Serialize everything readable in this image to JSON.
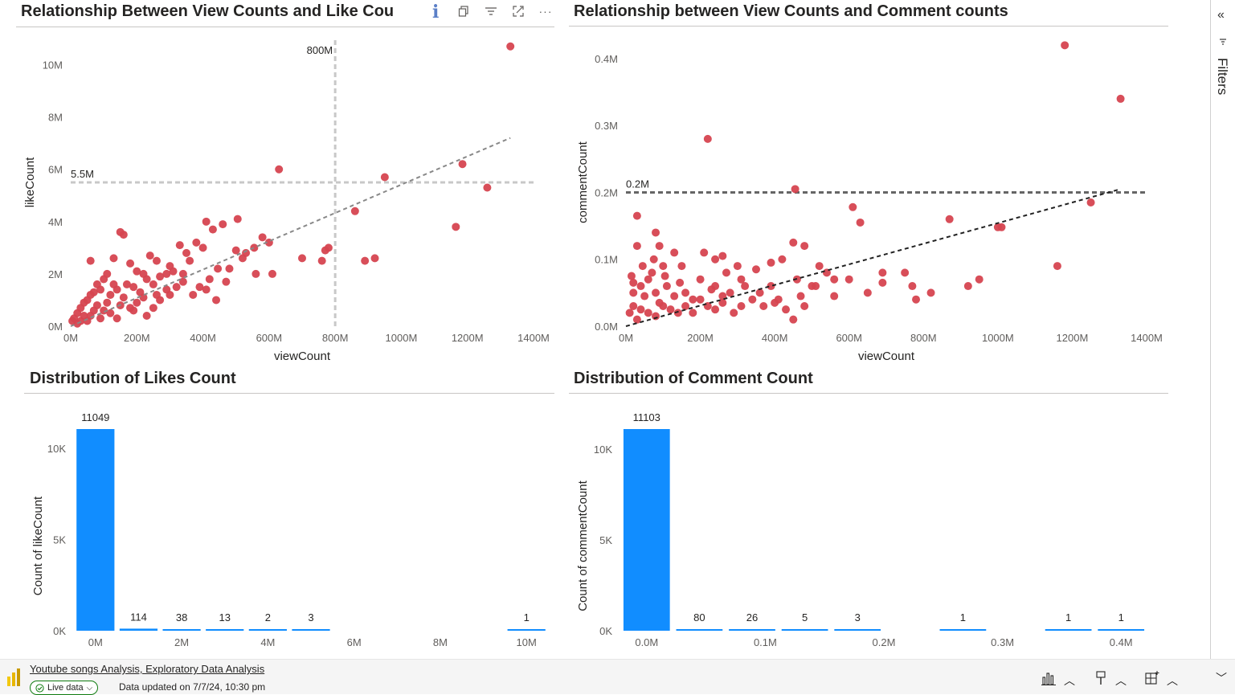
{
  "visuals": {
    "like_scatter": {
      "title": "Relationship Between View Counts and Like Cou",
      "ref_x_label": "800M",
      "ref_y_label": "5.5M"
    },
    "comment_scatter": {
      "title": "Relationship between View Counts and Comment counts",
      "ref_y_label": "0.2M"
    },
    "likes_hist": {
      "title": "Distribution of Likes Count"
    },
    "comment_hist": {
      "title": "Distribution of Comment Count"
    }
  },
  "header_icons": [
    "info-icon",
    "copy-icon",
    "filter-icon",
    "focus-mode-icon",
    "more-options-icon"
  ],
  "right_pane": {
    "label": "Filters"
  },
  "footer": {
    "report_title": "Youtube songs Analysis, Exploratory Data Analysis",
    "live_label": "Live data",
    "updated": "Data updated on 7/7/24, 10:30 pm"
  },
  "colors": {
    "scatter": "#d64550",
    "bar": "#118dff",
    "trend": "#555555"
  },
  "chart_data": [
    {
      "type": "scatter",
      "title": "Relationship Between View Counts and Like Cou",
      "xlabel": "viewCount",
      "ylabel": "likeCount",
      "xticks": [
        "0M",
        "200M",
        "400M",
        "600M",
        "800M",
        "1000M",
        "1200M",
        "1400M"
      ],
      "yticks": [
        "0M",
        "2M",
        "4M",
        "6M",
        "8M",
        "10M"
      ],
      "xlim": [
        0,
        1400
      ],
      "ylim": [
        0,
        11
      ],
      "x_unit": "M",
      "y_unit": "M",
      "reference_lines": {
        "x": 800,
        "y": 5.5
      },
      "trend": {
        "x": [
          0,
          1330
        ],
        "y": [
          0,
          7.2
        ]
      },
      "points": [
        [
          1330,
          10.7
        ],
        [
          950,
          5.7
        ],
        [
          1185,
          6.2
        ],
        [
          1260,
          5.3
        ],
        [
          630,
          6.0
        ],
        [
          860,
          4.4
        ],
        [
          1165,
          3.8
        ],
        [
          890,
          2.5
        ],
        [
          920,
          2.6
        ],
        [
          580,
          3.4
        ],
        [
          600,
          3.2
        ],
        [
          555,
          3.0
        ],
        [
          520,
          2.6
        ],
        [
          480,
          2.2
        ],
        [
          445,
          2.2
        ],
        [
          500,
          2.9
        ],
        [
          505,
          4.1
        ],
        [
          460,
          3.9
        ],
        [
          410,
          4.0
        ],
        [
          430,
          3.7
        ],
        [
          380,
          3.2
        ],
        [
          400,
          3.0
        ],
        [
          350,
          2.8
        ],
        [
          330,
          3.1
        ],
        [
          300,
          2.3
        ],
        [
          290,
          2.0
        ],
        [
          260,
          2.5
        ],
        [
          240,
          2.7
        ],
        [
          220,
          2.0
        ],
        [
          200,
          2.1
        ],
        [
          180,
          2.4
        ],
        [
          160,
          3.5
        ],
        [
          150,
          3.6
        ],
        [
          130,
          2.6
        ],
        [
          110,
          2.0
        ],
        [
          100,
          1.8
        ],
        [
          90,
          1.4
        ],
        [
          80,
          1.6
        ],
        [
          70,
          1.3
        ],
        [
          60,
          1.2
        ],
        [
          50,
          1.0
        ],
        [
          40,
          0.9
        ],
        [
          30,
          0.7
        ],
        [
          20,
          0.5
        ],
        [
          10,
          0.3
        ],
        [
          5,
          0.2
        ],
        [
          120,
          1.2
        ],
        [
          140,
          1.4
        ],
        [
          170,
          1.6
        ],
        [
          190,
          1.5
        ],
        [
          210,
          1.3
        ],
        [
          230,
          1.8
        ],
        [
          250,
          1.6
        ],
        [
          270,
          1.9
        ],
        [
          310,
          2.1
        ],
        [
          340,
          1.7
        ],
        [
          360,
          2.5
        ],
        [
          390,
          1.5
        ],
        [
          420,
          1.8
        ],
        [
          470,
          1.7
        ],
        [
          530,
          2.8
        ],
        [
          560,
          2.0
        ],
        [
          610,
          2.0
        ],
        [
          700,
          2.6
        ],
        [
          760,
          2.5
        ],
        [
          770,
          2.9
        ],
        [
          780,
          3.0
        ],
        [
          340,
          2.0
        ],
        [
          60,
          2.5
        ],
        [
          80,
          0.8
        ],
        [
          100,
          0.6
        ],
        [
          150,
          0.8
        ],
        [
          200,
          0.9
        ],
        [
          250,
          0.7
        ],
        [
          300,
          1.2
        ],
        [
          320,
          1.5
        ],
        [
          370,
          1.2
        ],
        [
          410,
          1.4
        ],
        [
          440,
          1.0
        ],
        [
          30,
          0.2
        ],
        [
          60,
          0.4
        ],
        [
          90,
          0.3
        ],
        [
          120,
          0.5
        ],
        [
          180,
          0.7
        ],
        [
          220,
          1.1
        ],
        [
          270,
          1.0
        ],
        [
          130,
          1.6
        ],
        [
          160,
          1.1
        ],
        [
          110,
          0.9
        ],
        [
          70,
          0.6
        ],
        [
          40,
          0.4
        ],
        [
          20,
          0.1
        ],
        [
          50,
          0.2
        ],
        [
          140,
          0.3
        ],
        [
          190,
          0.6
        ],
        [
          230,
          0.4
        ],
        [
          260,
          1.2
        ],
        [
          290,
          1.4
        ]
      ]
    },
    {
      "type": "scatter",
      "title": "Relationship between View Counts and Comment counts",
      "xlabel": "viewCount",
      "ylabel": "commentCount",
      "xticks": [
        "0M",
        "200M",
        "400M",
        "600M",
        "800M",
        "1000M",
        "1200M",
        "1400M"
      ],
      "yticks": [
        "0.0M",
        "0.1M",
        "0.2M",
        "0.3M",
        "0.4M"
      ],
      "xlim": [
        0,
        1400
      ],
      "ylim": [
        0,
        0.43
      ],
      "x_unit": "M",
      "y_unit": "M",
      "reference_lines": {
        "y": 0.2
      },
      "trend": {
        "x": [
          0,
          1330
        ],
        "y": [
          0,
          0.205
        ]
      },
      "points": [
        [
          1180,
          0.42
        ],
        [
          1330,
          0.34
        ],
        [
          220,
          0.28
        ],
        [
          455,
          0.205
        ],
        [
          1250,
          0.185
        ],
        [
          1010,
          0.148
        ],
        [
          1160,
          0.09
        ],
        [
          870,
          0.16
        ],
        [
          610,
          0.178
        ],
        [
          630,
          0.155
        ],
        [
          30,
          0.165
        ],
        [
          80,
          0.14
        ],
        [
          30,
          0.12
        ],
        [
          90,
          0.12
        ],
        [
          210,
          0.11
        ],
        [
          240,
          0.1
        ],
        [
          260,
          0.105
        ],
        [
          480,
          0.12
        ],
        [
          450,
          0.125
        ],
        [
          520,
          0.09
        ],
        [
          390,
          0.095
        ],
        [
          420,
          0.1
        ],
        [
          350,
          0.085
        ],
        [
          300,
          0.09
        ],
        [
          270,
          0.08
        ],
        [
          240,
          0.06
        ],
        [
          200,
          0.07
        ],
        [
          150,
          0.09
        ],
        [
          130,
          0.11
        ],
        [
          100,
          0.09
        ],
        [
          70,
          0.08
        ],
        [
          40,
          0.06
        ],
        [
          20,
          0.05
        ],
        [
          60,
          0.07
        ],
        [
          80,
          0.05
        ],
        [
          110,
          0.06
        ],
        [
          160,
          0.05
        ],
        [
          180,
          0.04
        ],
        [
          230,
          0.055
        ],
        [
          280,
          0.05
        ],
        [
          320,
          0.06
        ],
        [
          360,
          0.05
        ],
        [
          410,
          0.04
        ],
        [
          460,
          0.07
        ],
        [
          510,
          0.06
        ],
        [
          560,
          0.07
        ],
        [
          600,
          0.07
        ],
        [
          650,
          0.05
        ],
        [
          690,
          0.08
        ],
        [
          750,
          0.08
        ],
        [
          770,
          0.06
        ],
        [
          690,
          0.065
        ],
        [
          950,
          0.07
        ],
        [
          920,
          0.06
        ],
        [
          820,
          0.05
        ],
        [
          780,
          0.04
        ],
        [
          1000,
          0.148
        ],
        [
          560,
          0.045
        ],
        [
          480,
          0.03
        ],
        [
          500,
          0.06
        ],
        [
          540,
          0.08
        ],
        [
          470,
          0.045
        ],
        [
          10,
          0.02
        ],
        [
          20,
          0.03
        ],
        [
          30,
          0.01
        ],
        [
          40,
          0.025
        ],
        [
          60,
          0.02
        ],
        [
          80,
          0.015
        ],
        [
          100,
          0.03
        ],
        [
          120,
          0.025
        ],
        [
          140,
          0.02
        ],
        [
          160,
          0.03
        ],
        [
          180,
          0.02
        ],
        [
          200,
          0.04
        ],
        [
          220,
          0.03
        ],
        [
          240,
          0.025
        ],
        [
          260,
          0.035
        ],
        [
          290,
          0.02
        ],
        [
          310,
          0.03
        ],
        [
          340,
          0.04
        ],
        [
          370,
          0.03
        ],
        [
          400,
          0.035
        ],
        [
          430,
          0.025
        ],
        [
          450,
          0.01
        ],
        [
          390,
          0.06
        ],
        [
          310,
          0.07
        ],
        [
          260,
          0.045
        ],
        [
          130,
          0.045
        ],
        [
          90,
          0.035
        ],
        [
          50,
          0.045
        ],
        [
          20,
          0.065
        ],
        [
          15,
          0.075
        ],
        [
          45,
          0.09
        ],
        [
          75,
          0.1
        ],
        [
          105,
          0.075
        ],
        [
          145,
          0.065
        ]
      ]
    },
    {
      "type": "bar",
      "title": "Distribution of Likes Count",
      "ylabel": "Count of likeCount",
      "xticks": [
        "0M",
        "2M",
        "4M",
        "6M",
        "8M",
        "10M"
      ],
      "yticks": [
        "0K",
        "5K",
        "10K"
      ],
      "xlim": [
        -0.5,
        10.5
      ],
      "ylim": [
        0,
        11049
      ],
      "bins": [
        0,
        1,
        2,
        3,
        4,
        5,
        10
      ],
      "values": [
        11049,
        114,
        38,
        13,
        2,
        3,
        1
      ]
    },
    {
      "type": "bar",
      "title": "Distribution of Comment Count",
      "ylabel": "Count of commentCount",
      "xticks": [
        "0.0M",
        "0.1M",
        "0.2M",
        "0.3M",
        "0.4M"
      ],
      "yticks": [
        "0K",
        "5K",
        "10K"
      ],
      "xlim": [
        -0.5,
        9.5
      ],
      "ylim": [
        0,
        11103
      ],
      "bins": [
        0,
        1,
        2,
        3,
        4,
        6,
        8,
        9
      ],
      "values": [
        11103,
        80,
        26,
        5,
        3,
        1,
        1,
        1
      ]
    }
  ]
}
